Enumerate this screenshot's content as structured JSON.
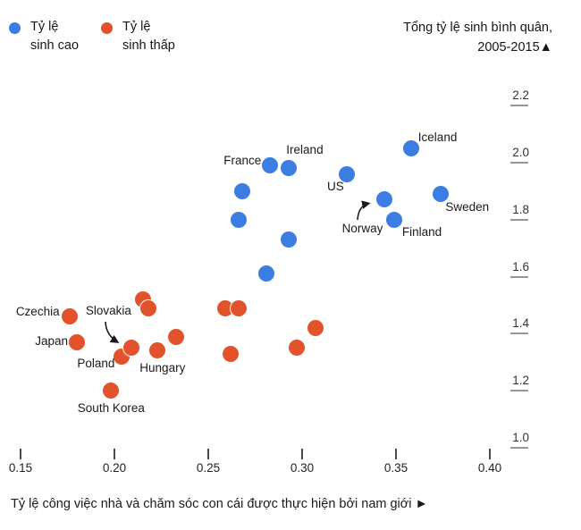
{
  "legend": {
    "items": [
      {
        "name": "high-fertility",
        "color": "#3B7DE3",
        "line1": "Tỷ lệ",
        "line2": "sinh cao"
      },
      {
        "name": "low-fertility",
        "color": "#E2532B",
        "line1": "Tỷ lệ",
        "line2": "sinh thấp"
      }
    ]
  },
  "title": {
    "line1": "Tổng tỷ lệ sinh bình quân,",
    "line2": "2005-2015▲"
  },
  "chart_data": {
    "type": "scatter",
    "title": "Tổng tỷ lệ sinh bình quân, 2005-2015",
    "xlabel": "Tỷ lệ công việc nhà và chăm sóc con cái được thực hiện bởi nam giới  ►",
    "xlim": [
      0.15,
      0.4
    ],
    "ylim": [
      1.0,
      2.2
    ],
    "x_ticks": [
      "0.15",
      "0.20",
      "0.25",
      "0.30",
      "0.35",
      "0.40"
    ],
    "y_ticks": [
      "2.2",
      "2.0",
      "1.8",
      "1.6",
      "1.4",
      "1.2",
      "1.0"
    ],
    "grid": false,
    "legend_position": "top-left",
    "series": [
      {
        "name": "Tỷ lệ sinh cao",
        "color": "#3B7DE3",
        "points": [
          {
            "x": 0.283,
            "y": 1.99,
            "label": "France",
            "align": "right",
            "dx": -10,
            "dy": -5
          },
          {
            "x": 0.293,
            "y": 1.98,
            "label": "Ireland",
            "align": "left",
            "dx": -3,
            "dy": -20
          },
          {
            "x": 0.358,
            "y": 2.05,
            "label": "Iceland",
            "align": "left",
            "dx": 8,
            "dy": -12
          },
          {
            "x": 0.324,
            "y": 1.96,
            "label": "US",
            "align": "center",
            "dx": -13,
            "dy": 14
          },
          {
            "x": 0.374,
            "y": 1.89,
            "label": "Sweden",
            "align": "left",
            "dx": 5,
            "dy": 15
          },
          {
            "x": 0.344,
            "y": 1.87,
            "label": "Norway",
            "align": "right",
            "dx": -2,
            "dy": 33
          },
          {
            "x": 0.349,
            "y": 1.8,
            "label": "Finland",
            "align": "left",
            "dx": 9,
            "dy": 14
          },
          {
            "x": 0.268,
            "y": 1.9
          },
          {
            "x": 0.266,
            "y": 1.8
          },
          {
            "x": 0.293,
            "y": 1.73
          },
          {
            "x": 0.281,
            "y": 1.61
          }
        ]
      },
      {
        "name": "Tỷ lệ sinh thấp",
        "color": "#E2532B",
        "points": [
          {
            "x": 0.176,
            "y": 1.46,
            "label": "Czechia",
            "align": "right",
            "dx": -11,
            "dy": -5
          },
          {
            "x": 0.18,
            "y": 1.37,
            "label": "Japan",
            "align": "right",
            "dx": -10,
            "dy": -1
          },
          {
            "x": 0.204,
            "y": 1.32,
            "label": "Poland",
            "align": "left",
            "dx": -50,
            "dy": 8
          },
          {
            "x": 0.209,
            "y": 1.35,
            "label": "Slovakia",
            "align": "left",
            "dx": -51,
            "dy": -41
          },
          {
            "x": 0.223,
            "y": 1.34,
            "label": "Hungary",
            "align": "left",
            "dx": -20,
            "dy": 20
          },
          {
            "x": 0.198,
            "y": 1.2,
            "label": "South Korea",
            "align": "left",
            "dx": -37,
            "dy": 20
          },
          {
            "x": 0.215,
            "y": 1.52
          },
          {
            "x": 0.218,
            "y": 1.49
          },
          {
            "x": 0.233,
            "y": 1.39
          },
          {
            "x": 0.259,
            "y": 1.49
          },
          {
            "x": 0.266,
            "y": 1.49
          },
          {
            "x": 0.262,
            "y": 1.33
          },
          {
            "x": 0.297,
            "y": 1.35
          },
          {
            "x": 0.307,
            "y": 1.42
          }
        ]
      }
    ]
  }
}
